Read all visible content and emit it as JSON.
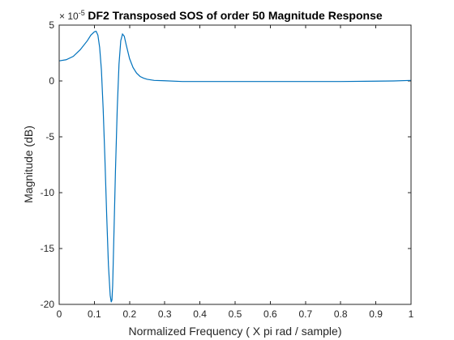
{
  "chart_data": {
    "type": "line",
    "title": "DF2 Transposed SOS of order 50 Magnitude Response",
    "xlabel": "Normalized Frequency ( X pi rad / sample)",
    "ylabel": "Magnitude (dB)",
    "y_exponent_base": "× 10",
    "y_exponent_power": "-5",
    "xlim": [
      0,
      1
    ],
    "ylim": [
      -20,
      5
    ],
    "x_ticks": [
      "0",
      "0.1",
      "0.2",
      "0.3",
      "0.4",
      "0.5",
      "0.6",
      "0.7",
      "0.8",
      "0.9",
      "1"
    ],
    "y_ticks": [
      "5",
      "0",
      "-5",
      "-10",
      "-15",
      "-20"
    ],
    "grid": false,
    "line_color": "#0072bd",
    "series": [
      {
        "x": [
          0,
          0.02,
          0.04,
          0.06,
          0.08,
          0.09,
          0.1,
          0.105,
          0.11,
          0.115,
          0.12,
          0.125,
          0.13,
          0.135,
          0.14,
          0.145,
          0.148,
          0.15,
          0.152,
          0.155,
          0.16,
          0.165,
          0.17,
          0.175,
          0.18,
          0.185,
          0.19,
          0.2,
          0.21,
          0.22,
          0.23,
          0.24,
          0.25,
          0.27,
          0.3,
          0.35,
          0.4,
          0.5,
          0.6,
          0.7,
          0.8,
          0.9,
          0.95,
          1.0
        ],
        "values": [
          1.8,
          1.9,
          2.2,
          2.8,
          3.6,
          4.1,
          4.4,
          4.45,
          4.1,
          3.0,
          1.0,
          -2.5,
          -7.0,
          -12.0,
          -16.5,
          -19.2,
          -19.8,
          -19.6,
          -18.3,
          -14.5,
          -8.0,
          -2.5,
          1.5,
          3.6,
          4.2,
          4.0,
          3.3,
          2.0,
          1.2,
          0.7,
          0.4,
          0.25,
          0.15,
          0.05,
          0.02,
          -0.05,
          -0.05,
          -0.05,
          -0.05,
          -0.05,
          -0.05,
          -0.02,
          0.0,
          0.05
        ]
      }
    ]
  }
}
